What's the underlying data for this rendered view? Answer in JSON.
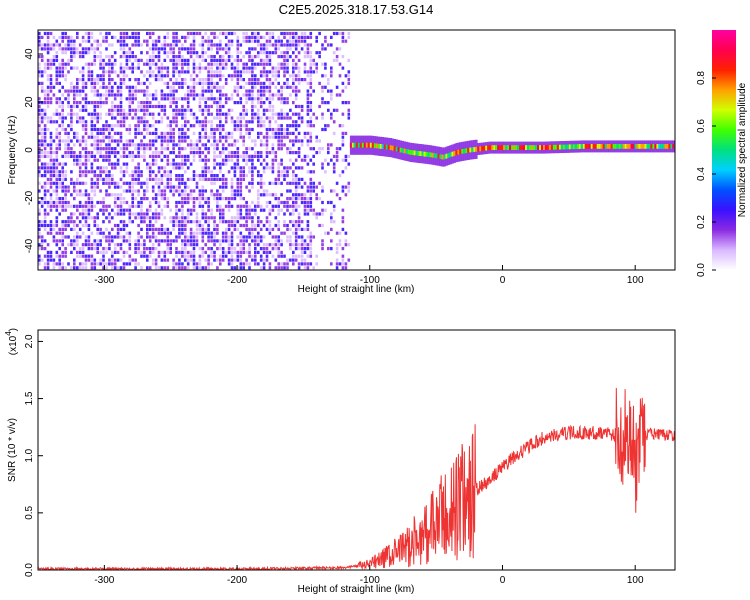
{
  "title": "C2E5.2025.318.17.53.G14",
  "chart_data": [
    {
      "type": "heatmap",
      "xlabel": "Height of straight line (km)",
      "ylabel": "Frequency (Hz)",
      "xlim": [
        -350,
        130
      ],
      "ylim": [
        -50,
        50
      ],
      "xticks": [
        -300,
        -200,
        -100,
        0,
        100
      ],
      "yticks": [
        -40,
        -20,
        0,
        20,
        40
      ],
      "xtick_labels": [
        "-300",
        "-200",
        "-100",
        "0",
        "100"
      ],
      "ytick_labels": [
        "-40",
        "-20",
        "0",
        "20",
        "40"
      ],
      "noise_region_x": [
        -350,
        -120
      ],
      "carrier_ridge": [
        {
          "x": -115,
          "y": 2
        },
        {
          "x": -100,
          "y": 2
        },
        {
          "x": -85,
          "y": 1
        },
        {
          "x": -70,
          "y": -1
        },
        {
          "x": -55,
          "y": -2
        },
        {
          "x": -45,
          "y": -3
        },
        {
          "x": -35,
          "y": -1
        },
        {
          "x": -25,
          "y": 0
        },
        {
          "x": -10,
          "y": 1
        },
        {
          "x": 0,
          "y": 1
        },
        {
          "x": 30,
          "y": 1
        },
        {
          "x": 60,
          "y": 1.5
        },
        {
          "x": 100,
          "y": 1.5
        },
        {
          "x": 130,
          "y": 1.5
        }
      ],
      "colorbar": {
        "label": "Normalized spectral amplitude",
        "range": [
          0,
          1
        ],
        "ticks": [
          0.0,
          0.2,
          0.4,
          0.6,
          0.8
        ],
        "tick_labels": [
          "0.0",
          "0.2",
          "0.4",
          "0.6",
          "0.8"
        ],
        "colors": [
          "#ffffff",
          "#d9b8ff",
          "#8a2be2",
          "#3a10ff",
          "#0050ff",
          "#00d0ff",
          "#00e080",
          "#40ff00",
          "#d0ff00",
          "#ffa000",
          "#ff2000",
          "#ff0050",
          "#ff00a0"
        ]
      }
    },
    {
      "type": "line",
      "xlabel": "Height of straight line (km)",
      "ylabel": "SNR (10 * v/v)",
      "y_multiplier_label": "(x10",
      "y_multiplier_exponent": "4",
      "y_multiplier_close": ")",
      "xlim": [
        -350,
        130
      ],
      "ylim": [
        0,
        2.1
      ],
      "xticks": [
        -300,
        -200,
        -100,
        0,
        100
      ],
      "yticks": [
        0.0,
        0.5,
        1.0,
        1.5,
        2.0
      ],
      "xtick_labels": [
        "-300",
        "-200",
        "-100",
        "0",
        "100"
      ],
      "ytick_labels": [
        "0.0",
        "0.5",
        "1.0",
        "1.5",
        "2.0"
      ],
      "color": "#ee3333",
      "series": [
        {
          "x": [
            -350,
            -200,
            -120,
            -100,
            -90,
            -80,
            -70,
            -60,
            -50,
            -40,
            -30,
            -20,
            -10,
            0,
            10,
            20,
            30,
            40,
            50,
            70,
            80,
            90,
            95,
            100,
            105,
            110,
            120,
            130
          ],
          "y": [
            0.01,
            0.01,
            0.02,
            0.05,
            0.1,
            0.15,
            0.22,
            0.3,
            0.4,
            0.5,
            0.6,
            0.7,
            0.78,
            0.9,
            1.0,
            1.08,
            1.15,
            1.18,
            1.2,
            1.2,
            1.2,
            1.15,
            1.25,
            0.9,
            1.1,
            1.2,
            1.18,
            1.18
          ]
        }
      ]
    }
  ]
}
